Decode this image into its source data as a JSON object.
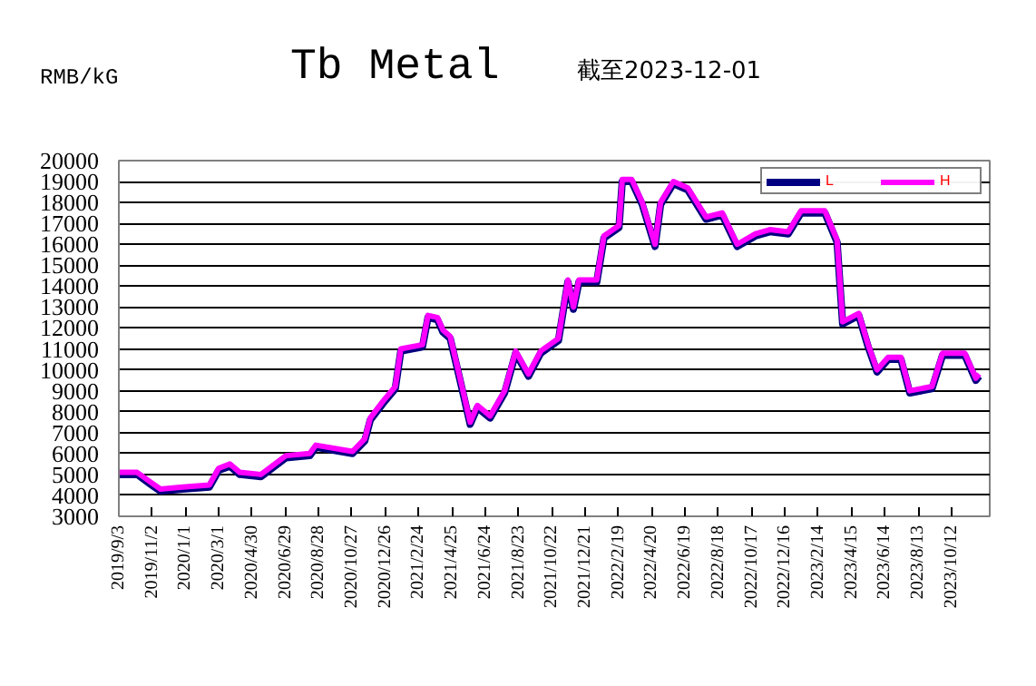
{
  "chart_data": {
    "type": "line",
    "title": "Tb Metal",
    "subtitle": "截至2023-12-01",
    "ylabel": "RMB/kG",
    "x": [
      "2019-09-03",
      "2019-10-06",
      "2019-11-01",
      "2019-11-17",
      "2019-12-27",
      "2020-02-13",
      "2020-03-01",
      "2020-03-21",
      "2020-04-08",
      "2020-05-16",
      "2020-06-30",
      "2020-08-12",
      "2020-08-23",
      "2020-10-28",
      "2020-11-19",
      "2020-11-29",
      "2020-12-22",
      "2021-01-13",
      "2021-01-23",
      "2021-03-03",
      "2021-03-13",
      "2021-03-30",
      "2021-04-09",
      "2021-04-22",
      "2021-05-08",
      "2021-05-28",
      "2021-06-10",
      "2021-07-03",
      "2021-07-29",
      "2021-08-18",
      "2021-09-10",
      "2021-10-02",
      "2021-11-03",
      "2021-11-20",
      "2021-11-30",
      "2021-12-10",
      "2022-01-11",
      "2022-01-24",
      "2022-02-20",
      "2022-02-26",
      "2022-03-15",
      "2022-04-03",
      "2022-04-26",
      "2022-05-06",
      "2022-05-29",
      "2022-06-24",
      "2022-07-27",
      "2022-08-25",
      "2022-09-21",
      "2022-10-24",
      "2022-11-19",
      "2022-12-22",
      "2023-01-14",
      "2023-02-26",
      "2023-03-20",
      "2023-03-30",
      "2023-04-28",
      "2023-05-15",
      "2023-05-31",
      "2023-06-20",
      "2023-07-13",
      "2023-07-29",
      "2023-09-07",
      "2023-09-26",
      "2023-11-05",
      "2023-11-25",
      "2023-12-01"
    ],
    "series": [
      {
        "name": "L",
        "color": "#000080",
        "values": [
          5000,
          5000,
          4500,
          4200,
          4300,
          4400,
          5200,
          5400,
          5000,
          4900,
          5800,
          5900,
          6300,
          6000,
          6600,
          7600,
          8400,
          9100,
          10900,
          11100,
          12500,
          12400,
          11800,
          11500,
          9700,
          7400,
          8200,
          7700,
          8900,
          10800,
          9700,
          10800,
          11400,
          14200,
          12900,
          14200,
          14200,
          16300,
          16800,
          19000,
          19000,
          17900,
          15900,
          17900,
          18900,
          18600,
          17200,
          17400,
          15900,
          16400,
          16600,
          16500,
          17500,
          17500,
          16100,
          12200,
          12600,
          11100,
          9900,
          10500,
          10500,
          8900,
          9100,
          10700,
          10700,
          9500,
          9700
        ]
      },
      {
        "name": "H",
        "color": "#ff00ff",
        "values": [
          5100,
          5100,
          4600,
          4300,
          4400,
          4500,
          5300,
          5500,
          5100,
          5000,
          5900,
          6000,
          6400,
          6100,
          6700,
          7700,
          8500,
          9200,
          11000,
          11200,
          12600,
          12500,
          11900,
          11600,
          9800,
          7500,
          8300,
          7800,
          9000,
          10900,
          9800,
          10900,
          11500,
          14300,
          13000,
          14300,
          14300,
          16400,
          16900,
          19100,
          19100,
          18000,
          16000,
          18000,
          19000,
          18700,
          17300,
          17500,
          16000,
          16500,
          16700,
          16600,
          17600,
          17600,
          16200,
          12300,
          12700,
          11200,
          10000,
          10600,
          10600,
          9000,
          9200,
          10800,
          10800,
          9600,
          9800
        ]
      }
    ],
    "xlim": [
      "2019-09-03",
      "2023-12-20"
    ],
    "xticks": [
      {
        "value": "2019-09-03",
        "label": "2019/9/3"
      },
      {
        "value": "2019-11-02",
        "label": "2019/11/2"
      },
      {
        "value": "2020-01-01",
        "label": "2020/1/1"
      },
      {
        "value": "2020-03-01",
        "label": "2020/3/1"
      },
      {
        "value": "2020-04-30",
        "label": "2020/4/30"
      },
      {
        "value": "2020-06-29",
        "label": "2020/6/29"
      },
      {
        "value": "2020-08-28",
        "label": "2020/8/28"
      },
      {
        "value": "2020-10-27",
        "label": "2020/10/27"
      },
      {
        "value": "2020-12-26",
        "label": "2020/12/26"
      },
      {
        "value": "2021-02-24",
        "label": "2021/2/24"
      },
      {
        "value": "2021-04-25",
        "label": "2021/4/25"
      },
      {
        "value": "2021-06-24",
        "label": "2021/6/24"
      },
      {
        "value": "2021-08-23",
        "label": "2021/8/23"
      },
      {
        "value": "2021-10-22",
        "label": "2021/10/22"
      },
      {
        "value": "2021-12-21",
        "label": "2021/12/21"
      },
      {
        "value": "2022-02-19",
        "label": "2022/2/19"
      },
      {
        "value": "2022-04-20",
        "label": "2022/4/20"
      },
      {
        "value": "2022-06-19",
        "label": "2022/6/19"
      },
      {
        "value": "2022-08-18",
        "label": "2022/8/18"
      },
      {
        "value": "2022-10-17",
        "label": "2022/10/17"
      },
      {
        "value": "2022-12-16",
        "label": "2022/12/16"
      },
      {
        "value": "2023-02-14",
        "label": "2023/2/14"
      },
      {
        "value": "2023-04-15",
        "label": "2023/4/15"
      },
      {
        "value": "2023-06-14",
        "label": "2023/6/14"
      },
      {
        "value": "2023-08-13",
        "label": "2023/8/13"
      },
      {
        "value": "2023-10-12",
        "label": "2023/10/12"
      }
    ],
    "ylim": [
      3000,
      20000
    ],
    "yticks": [
      3000,
      4000,
      5000,
      6000,
      7000,
      8000,
      9000,
      10000,
      11000,
      12000,
      13000,
      14000,
      15000,
      16000,
      17000,
      18000,
      19000,
      20000
    ],
    "grid": "y",
    "legend": "top right",
    "marker": "none",
    "line_style": "solid"
  }
}
